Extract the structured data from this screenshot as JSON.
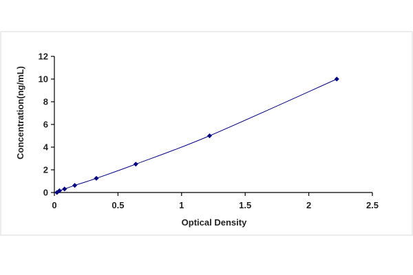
{
  "chart_data": {
    "type": "scatter",
    "title": "",
    "xlabel": "Optical Density",
    "ylabel": "Concentration(ng/mL)",
    "xlim": [
      0,
      2.5
    ],
    "ylim": [
      0,
      12
    ],
    "x_ticks": [
      "0",
      "0.5",
      "1",
      "1.5",
      "2",
      "2.5"
    ],
    "y_ticks": [
      "0",
      "2",
      "4",
      "6",
      "8",
      "10",
      "12"
    ],
    "grid": false,
    "legend": "none",
    "trendline": "smooth curve through standard points",
    "series": [
      {
        "x": [
          0.02,
          0.04,
          0.08,
          0.16,
          0.33,
          0.64,
          1.22,
          2.22
        ],
        "y": [
          0.0,
          0.156,
          0.31,
          0.625,
          1.25,
          2.5,
          5.0,
          10.0
        ]
      }
    ],
    "colors": {
      "points": "#000080",
      "line": "#000080",
      "axes": "#000000"
    }
  }
}
